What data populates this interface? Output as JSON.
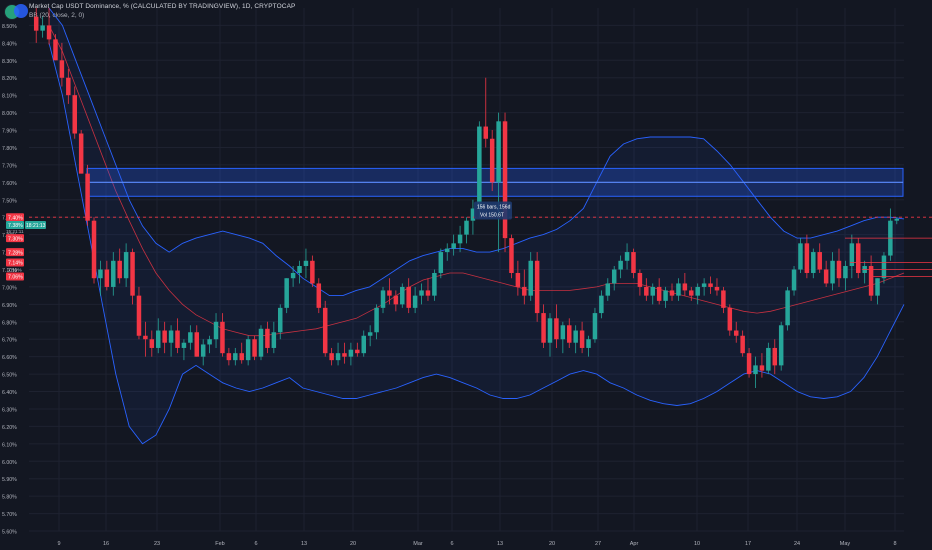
{
  "header": {
    "title": "Market Cap USDT Dominance, % (CALCULATED BY TRADINGVIEW), 1D, CRYPTOCAP",
    "indicator": "BB (20, close, 2, 0)"
  },
  "colors": {
    "background": "#131722",
    "up": "#26a69a",
    "down": "#f23645",
    "band": "#2962ff",
    "basis": "#f23645",
    "zone": "#2962ff"
  },
  "price_labels": {
    "last": "7.38%",
    "countdown": "18:21:13",
    "sub_last": "15:21:11",
    "level_1": "7.38%",
    "level_2": "7.30%",
    "level_3": "7.28%",
    "level_4": "7.14%",
    "level_5": "7.10%",
    "level_6": "7.06%",
    "dashed_level": "7.40%"
  },
  "measure_tooltip": {
    "line1": "156 bars, 156d",
    "line2": "Vol 150.6T"
  },
  "chart_data": {
    "type": "candlestick",
    "title": "Market Cap USDT Dominance, % (CALCULATED BY TRADINGVIEW), 1D, CRYPTOCAP",
    "ylabel": "%",
    "ylim": [
      5.6,
      8.6
    ],
    "y_ticks": [
      "5.60%",
      "5.70%",
      "5.80%",
      "5.90%",
      "6.00%",
      "6.10%",
      "6.20%",
      "6.30%",
      "6.40%",
      "6.50%",
      "6.60%",
      "6.70%",
      "6.80%",
      "6.90%",
      "7.00%",
      "7.10%",
      "7.20%",
      "7.30%",
      "7.40%",
      "7.50%",
      "7.60%",
      "7.70%",
      "7.80%",
      "7.90%",
      "8.00%",
      "8.10%",
      "8.20%",
      "8.30%",
      "8.40%",
      "8.50%"
    ],
    "x_ticks": [
      "9",
      "16",
      "23",
      "Feb",
      "6",
      "13",
      "20",
      "Mar",
      "6",
      "13",
      "20",
      "27",
      "Apr",
      "10",
      "17",
      "24",
      "May",
      "8"
    ],
    "series": [
      {
        "name": "USDT Dominance",
        "candles": [
          [
            8.55,
            8.6,
            8.4,
            8.47
          ],
          [
            8.47,
            8.55,
            8.43,
            8.5
          ],
          [
            8.5,
            8.6,
            8.39,
            8.42
          ],
          [
            8.42,
            8.45,
            8.3,
            8.3
          ],
          [
            8.3,
            8.4,
            8.15,
            8.2
          ],
          [
            8.2,
            8.25,
            8.05,
            8.1
          ],
          [
            8.1,
            8.15,
            7.85,
            7.88
          ],
          [
            7.88,
            7.9,
            7.65,
            7.65
          ],
          [
            7.65,
            7.7,
            7.35,
            7.38
          ],
          [
            7.38,
            7.4,
            7.02,
            7.05
          ],
          [
            7.05,
            7.15,
            6.95,
            7.1
          ],
          [
            7.1,
            7.15,
            6.98,
            7.0
          ],
          [
            7.0,
            7.2,
            6.95,
            7.15
          ],
          [
            7.15,
            7.22,
            7.02,
            7.05
          ],
          [
            7.05,
            7.25,
            7.0,
            7.2
          ],
          [
            7.2,
            7.22,
            6.9,
            6.95
          ],
          [
            6.95,
            7.0,
            6.7,
            6.72
          ],
          [
            6.72,
            6.8,
            6.6,
            6.7
          ],
          [
            6.7,
            6.75,
            6.6,
            6.65
          ],
          [
            6.65,
            6.82,
            6.62,
            6.75
          ],
          [
            6.75,
            6.8,
            6.62,
            6.68
          ],
          [
            6.68,
            6.78,
            6.6,
            6.75
          ],
          [
            6.75,
            6.82,
            6.62,
            6.65
          ],
          [
            6.65,
            6.7,
            6.58,
            6.68
          ],
          [
            6.68,
            6.78,
            6.64,
            6.74
          ],
          [
            6.74,
            6.78,
            6.6,
            6.6
          ],
          [
            6.6,
            6.7,
            6.55,
            6.67
          ],
          [
            6.67,
            6.72,
            6.62,
            6.7
          ],
          [
            6.7,
            6.85,
            6.65,
            6.8
          ],
          [
            6.8,
            6.85,
            6.6,
            6.62
          ],
          [
            6.62,
            6.65,
            6.55,
            6.58
          ],
          [
            6.58,
            6.65,
            6.55,
            6.62
          ],
          [
            6.62,
            6.68,
            6.56,
            6.58
          ],
          [
            6.58,
            6.72,
            6.55,
            6.7
          ],
          [
            6.7,
            6.72,
            6.58,
            6.6
          ],
          [
            6.6,
            6.78,
            6.58,
            6.76
          ],
          [
            6.76,
            6.8,
            6.62,
            6.65
          ],
          [
            6.65,
            6.8,
            6.62,
            6.74
          ],
          [
            6.74,
            6.9,
            6.7,
            6.88
          ],
          [
            6.88,
            7.05,
            6.85,
            7.05
          ],
          [
            7.05,
            7.12,
            7.0,
            7.08
          ],
          [
            7.08,
            7.15,
            7.02,
            7.12
          ],
          [
            7.12,
            7.22,
            7.05,
            7.15
          ],
          [
            7.15,
            7.18,
            7.0,
            7.02
          ],
          [
            7.02,
            7.05,
            6.85,
            6.88
          ],
          [
            6.88,
            6.92,
            6.6,
            6.62
          ],
          [
            6.62,
            6.65,
            6.55,
            6.58
          ],
          [
            6.58,
            6.68,
            6.55,
            6.62
          ],
          [
            6.62,
            6.68,
            6.56,
            6.6
          ],
          [
            6.6,
            6.68,
            6.55,
            6.64
          ],
          [
            6.64,
            6.68,
            6.6,
            6.62
          ],
          [
            6.62,
            6.75,
            6.6,
            6.72
          ],
          [
            6.72,
            6.78,
            6.66,
            6.74
          ],
          [
            6.74,
            6.9,
            6.7,
            6.88
          ],
          [
            6.88,
            7.0,
            6.85,
            6.98
          ],
          [
            6.98,
            7.05,
            6.9,
            6.95
          ],
          [
            6.95,
            6.98,
            6.86,
            6.9
          ],
          [
            6.9,
            7.02,
            6.88,
            7.0
          ],
          [
            7.0,
            7.05,
            6.85,
            6.88
          ],
          [
            6.88,
            7.0,
            6.85,
            6.95
          ],
          [
            6.95,
            7.02,
            6.9,
            6.98
          ],
          [
            6.98,
            7.05,
            6.92,
            6.95
          ],
          [
            6.95,
            7.1,
            6.92,
            7.08
          ],
          [
            7.08,
            7.22,
            7.05,
            7.2
          ],
          [
            7.2,
            7.25,
            7.15,
            7.22
          ],
          [
            7.22,
            7.3,
            7.18,
            7.25
          ],
          [
            7.25,
            7.35,
            7.2,
            7.3
          ],
          [
            7.3,
            7.4,
            7.25,
            7.38
          ],
          [
            7.38,
            7.5,
            7.3,
            7.45
          ],
          [
            7.45,
            7.95,
            7.4,
            7.92
          ],
          [
            7.92,
            8.2,
            7.8,
            7.85
          ],
          [
            7.85,
            7.9,
            7.55,
            7.6
          ],
          [
            7.6,
            8.0,
            7.2,
            7.95
          ],
          [
            7.95,
            8.0,
            7.2,
            7.28
          ],
          [
            7.28,
            7.3,
            7.05,
            7.08
          ],
          [
            7.08,
            7.15,
            6.95,
            7.0
          ],
          [
            7.0,
            7.1,
            6.9,
            6.95
          ],
          [
            6.95,
            7.2,
            6.92,
            7.15
          ],
          [
            7.15,
            7.2,
            6.8,
            6.85
          ],
          [
            6.85,
            6.9,
            6.65,
            6.68
          ],
          [
            6.68,
            6.85,
            6.6,
            6.82
          ],
          [
            6.82,
            6.9,
            6.65,
            6.7
          ],
          [
            6.7,
            6.8,
            6.62,
            6.78
          ],
          [
            6.78,
            6.82,
            6.65,
            6.68
          ],
          [
            6.68,
            6.78,
            6.62,
            6.75
          ],
          [
            6.75,
            6.8,
            6.62,
            6.65
          ],
          [
            6.65,
            6.72,
            6.6,
            6.7
          ],
          [
            6.7,
            6.88,
            6.68,
            6.85
          ],
          [
            6.85,
            6.98,
            6.82,
            6.95
          ],
          [
            6.95,
            7.05,
            6.92,
            7.02
          ],
          [
            7.02,
            7.12,
            6.98,
            7.1
          ],
          [
            7.1,
            7.18,
            7.05,
            7.15
          ],
          [
            7.15,
            7.25,
            7.1,
            7.2
          ],
          [
            7.2,
            7.22,
            7.05,
            7.08
          ],
          [
            7.08,
            7.1,
            6.95,
            7.0
          ],
          [
            7.0,
            7.05,
            6.92,
            6.95
          ],
          [
            6.95,
            7.02,
            6.9,
            7.0
          ],
          [
            7.0,
            7.05,
            6.9,
            6.92
          ],
          [
            6.92,
            7.0,
            6.88,
            6.98
          ],
          [
            6.98,
            7.02,
            6.92,
            6.95
          ],
          [
            6.95,
            7.05,
            6.92,
            7.02
          ],
          [
            7.02,
            7.08,
            6.95,
            6.98
          ],
          [
            6.98,
            7.0,
            6.92,
            6.95
          ],
          [
            6.95,
            7.02,
            6.9,
            7.0
          ],
          [
            7.0,
            7.05,
            6.95,
            7.02
          ],
          [
            7.02,
            7.06,
            6.96,
            7.0
          ],
          [
            7.0,
            7.05,
            6.95,
            6.98
          ],
          [
            6.98,
            7.0,
            6.85,
            6.88
          ],
          [
            6.88,
            6.9,
            6.72,
            6.75
          ],
          [
            6.75,
            6.8,
            6.68,
            6.72
          ],
          [
            6.72,
            6.75,
            6.6,
            6.62
          ],
          [
            6.62,
            6.65,
            6.48,
            6.5
          ],
          [
            6.5,
            6.6,
            6.42,
            6.55
          ],
          [
            6.55,
            6.62,
            6.48,
            6.52
          ],
          [
            6.52,
            6.68,
            6.5,
            6.65
          ],
          [
            6.65,
            6.7,
            6.5,
            6.55
          ],
          [
            6.55,
            6.8,
            6.52,
            6.78
          ],
          [
            6.78,
            7.0,
            6.75,
            6.98
          ],
          [
            6.98,
            7.12,
            6.95,
            7.1
          ],
          [
            7.1,
            7.28,
            7.08,
            7.25
          ],
          [
            7.25,
            7.3,
            7.05,
            7.08
          ],
          [
            7.08,
            7.22,
            7.05,
            7.2
          ],
          [
            7.2,
            7.25,
            7.08,
            7.1
          ],
          [
            7.1,
            7.15,
            7.0,
            7.02
          ],
          [
            7.02,
            7.2,
            6.98,
            7.15
          ],
          [
            7.15,
            7.22,
            7.0,
            7.05
          ],
          [
            7.05,
            7.15,
            6.98,
            7.12
          ],
          [
            7.12,
            7.3,
            7.05,
            7.25
          ],
          [
            7.25,
            7.28,
            7.05,
            7.08
          ],
          [
            7.08,
            7.15,
            7.02,
            7.12
          ],
          [
            7.12,
            7.18,
            6.92,
            6.95
          ],
          [
            6.95,
            7.05,
            6.9,
            7.05
          ],
          [
            7.05,
            7.2,
            7.02,
            7.18
          ],
          [
            7.18,
            7.45,
            7.15,
            7.38
          ],
          [
            7.38,
            7.4,
            7.36,
            7.39
          ]
        ]
      }
    ],
    "bollinger": {
      "upper": [
        8.6,
        8.5,
        8.3,
        8.1,
        7.9,
        7.7,
        7.5,
        7.35,
        7.25,
        7.2,
        7.25,
        7.28,
        7.3,
        7.32,
        7.3,
        7.28,
        7.25,
        7.18,
        7.12,
        7.05,
        7.0,
        6.95,
        6.95,
        6.98,
        7.0,
        7.05,
        7.1,
        7.15,
        7.18,
        7.2,
        7.22,
        7.22,
        7.2,
        7.2,
        7.22,
        7.25,
        7.28,
        7.3,
        7.33,
        7.38,
        7.45,
        7.6,
        7.75,
        7.82,
        7.85,
        7.86,
        7.86,
        7.86,
        7.86,
        7.85,
        7.78,
        7.7,
        7.6,
        7.5,
        7.4,
        7.32,
        7.28,
        7.28,
        7.3,
        7.32,
        7.35,
        7.38,
        7.4,
        7.4,
        7.39
      ],
      "basis": [
        8.5,
        8.35,
        8.15,
        7.95,
        7.75,
        7.55,
        7.38,
        7.22,
        7.08,
        6.98,
        6.9,
        6.84,
        6.8,
        6.76,
        6.74,
        6.72,
        6.72,
        6.73,
        6.74,
        6.75,
        6.76,
        6.78,
        6.8,
        6.82,
        6.86,
        6.9,
        6.95,
        7.0,
        7.04,
        7.06,
        7.08,
        7.08,
        7.06,
        7.04,
        7.02,
        7.0,
        6.98,
        6.98,
        6.98,
        6.98,
        6.99,
        7.0,
        7.02,
        7.02,
        7.02,
        7.0,
        6.98,
        6.96,
        6.94,
        6.92,
        6.9,
        6.88,
        6.86,
        6.85,
        6.86,
        6.88,
        6.9,
        6.92,
        6.94,
        6.96,
        6.98,
        7.0,
        7.02,
        7.05,
        7.08
      ],
      "lower": [
        8.4,
        8.1,
        7.7,
        7.3,
        6.9,
        6.5,
        6.2,
        6.1,
        6.15,
        6.3,
        6.5,
        6.55,
        6.5,
        6.45,
        6.42,
        6.4,
        6.42,
        6.45,
        6.48,
        6.42,
        6.4,
        6.38,
        6.36,
        6.36,
        6.38,
        6.4,
        6.42,
        6.45,
        6.48,
        6.5,
        6.48,
        6.45,
        6.42,
        6.38,
        6.36,
        6.36,
        6.38,
        6.42,
        6.46,
        6.5,
        6.52,
        6.5,
        6.45,
        6.42,
        6.38,
        6.35,
        6.33,
        6.32,
        6.33,
        6.36,
        6.4,
        6.45,
        6.5,
        6.52,
        6.5,
        6.45,
        6.4,
        6.37,
        6.36,
        6.37,
        6.4,
        6.48,
        6.6,
        6.75,
        6.9
      ]
    },
    "zone": {
      "low": 7.52,
      "high": 7.68,
      "line": 7.6
    },
    "dashed_level": 7.4,
    "grid": true,
    "legend": "top-left"
  }
}
